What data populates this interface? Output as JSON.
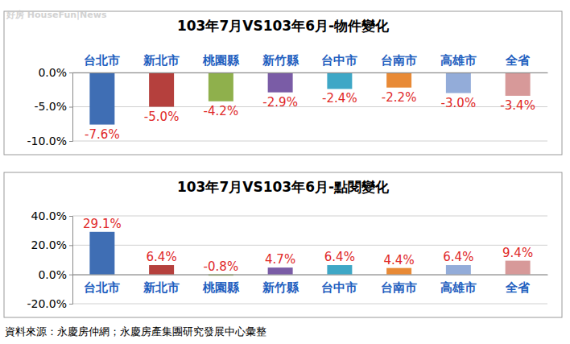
{
  "watermark": "好房 HouseFun|News",
  "source": "資料來源：永慶房仲網；永慶房產集團研究發展中心彙整",
  "chart_data": [
    {
      "type": "bar",
      "title": "103年7月VS103年6月-物件變化",
      "categories": [
        "台北市",
        "新北市",
        "桃園縣",
        "新竹縣",
        "台中市",
        "台南市",
        "高雄市",
        "全省"
      ],
      "values": [
        -7.6,
        -5.0,
        -4.2,
        -2.9,
        -2.4,
        -2.2,
        -3.0,
        -3.4
      ],
      "value_labels": [
        "-7.6%",
        "-5.0%",
        "-4.2%",
        "-2.9%",
        "-2.4%",
        "-2.2%",
        "-3.0%",
        "-3.4%"
      ],
      "colors": [
        "#3f6eb4",
        "#b5403d",
        "#8fb04c",
        "#7a5ca6",
        "#3ea7c6",
        "#e88a36",
        "#93acd9",
        "#d79999"
      ],
      "ylim": [
        -10,
        0
      ],
      "yticks": [
        {
          "value": 0,
          "label": "0.0%"
        },
        {
          "value": -5,
          "label": "-5.0%"
        },
        {
          "value": -10,
          "label": "-10.0%"
        }
      ],
      "grid": true,
      "data_labels": true
    },
    {
      "type": "bar",
      "title": "103年7月VS103年6月-點閱變化",
      "categories": [
        "台北市",
        "新北市",
        "桃園縣",
        "新竹縣",
        "台中市",
        "台南市",
        "高雄市",
        "全省"
      ],
      "values": [
        29.1,
        6.4,
        -0.8,
        4.7,
        6.4,
        4.4,
        6.4,
        9.4
      ],
      "value_labels": [
        "29.1%",
        "6.4%",
        "-0.8%",
        "4.7%",
        "6.4%",
        "4.4%",
        "6.4%",
        "9.4%"
      ],
      "colors": [
        "#3f6eb4",
        "#b5403d",
        "#8fb04c",
        "#7a5ca6",
        "#3ea7c6",
        "#e88a36",
        "#93acd9",
        "#d79999"
      ],
      "ylim": [
        -20,
        40
      ],
      "yticks": [
        {
          "value": 40,
          "label": "40.0%"
        },
        {
          "value": 20,
          "label": "20.0%"
        },
        {
          "value": 0,
          "label": "0.0%"
        },
        {
          "value": -20,
          "label": "-20.0%"
        }
      ],
      "grid": true,
      "data_labels": true
    }
  ]
}
